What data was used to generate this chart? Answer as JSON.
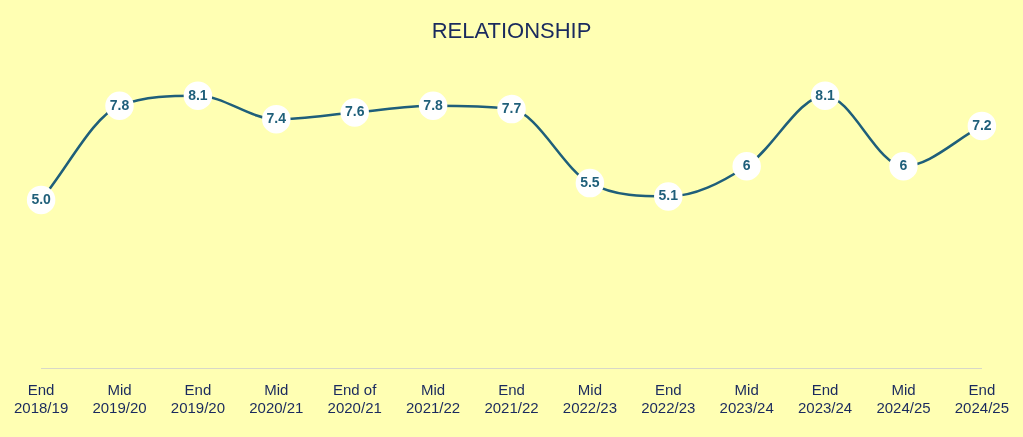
{
  "chart_data": {
    "type": "line",
    "title": "RELATIONSHIP",
    "categories": [
      "End\n2018/19",
      "Mid\n2019/20",
      "End\n2019/20",
      "Mid\n2020/21",
      "End of\n2020/21",
      "Mid\n2021/22",
      "End\n2021/22",
      "Mid\n2022/23",
      "End\n2022/23",
      "Mid\n2023/24",
      "End\n2023/24",
      "Mid\n2024/25",
      "End\n2024/25"
    ],
    "series": [
      {
        "color": "#1f5f7a",
        "values": [
          5.0,
          7.8,
          8.1,
          7.4,
          7.6,
          7.8,
          7.7,
          5.5,
          5.1,
          6,
          8.1,
          6,
          7.2
        ],
        "value_labels": [
          "5.0",
          "7.8",
          "8.1",
          "7.4",
          "7.6",
          "7.8",
          "7.7",
          "5.5",
          "5.1",
          "6",
          "8.1",
          "6",
          "7.2"
        ]
      }
    ],
    "tick_labels": "x",
    "grid": false,
    "legend": false,
    "marker": "circle",
    "line_style": "solid"
  }
}
